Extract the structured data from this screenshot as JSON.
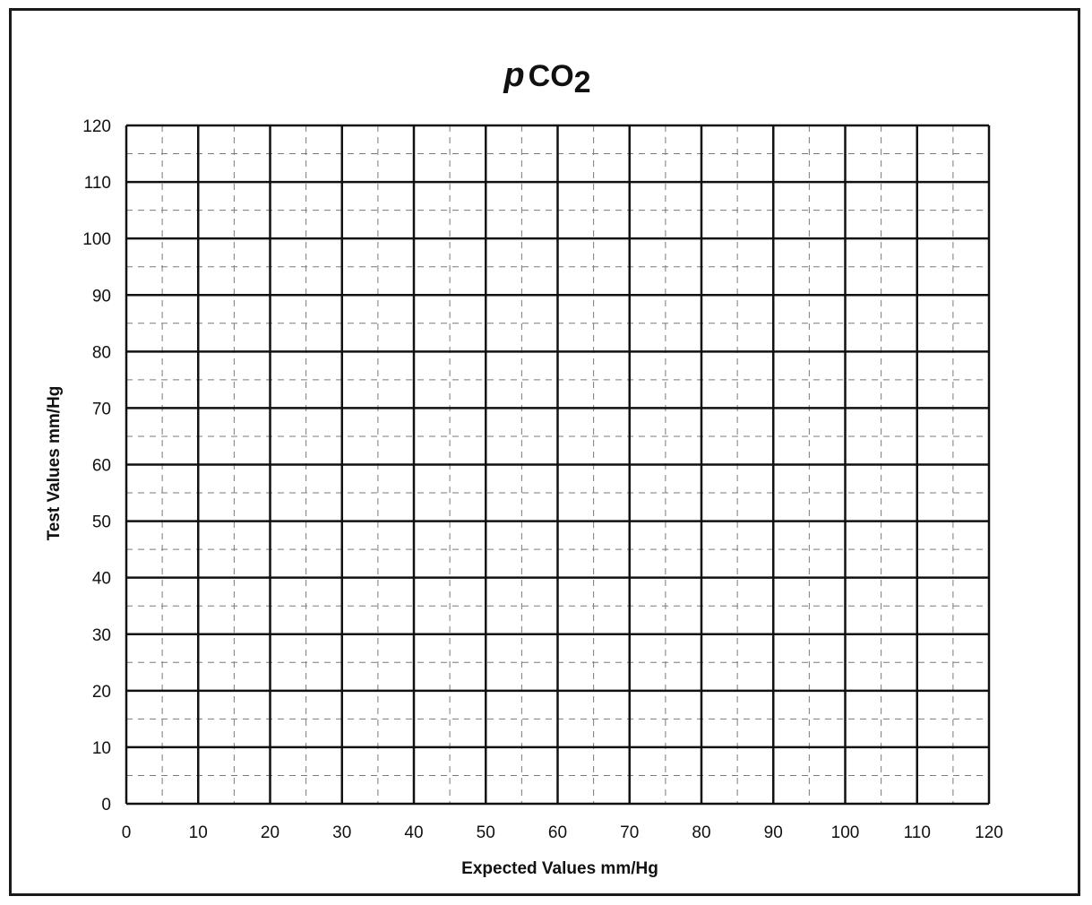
{
  "chart_data": {
    "type": "scatter",
    "title": {
      "italic_prefix": "p",
      "main": "CO",
      "subscript": "2"
    },
    "xlabel": "Expected Values mm/Hg",
    "ylabel": "Test Values mm/Hg",
    "xlim": [
      0,
      120
    ],
    "ylim": [
      0,
      120
    ],
    "major_step": 10,
    "minor_step": 5,
    "x_ticks": [
      "0",
      "10",
      "20",
      "30",
      "40",
      "50",
      "60",
      "70",
      "80",
      "90",
      "100",
      "110",
      "120"
    ],
    "y_ticks": [
      "0",
      "10",
      "20",
      "30",
      "40",
      "50",
      "60",
      "70",
      "80",
      "90",
      "100",
      "110",
      "120"
    ],
    "grid": {
      "major": "solid",
      "minor": "dashed"
    },
    "series": []
  },
  "colors": {
    "ink": "#111111",
    "minor_grid": "#7a7a7a",
    "background": "#ffffff"
  }
}
